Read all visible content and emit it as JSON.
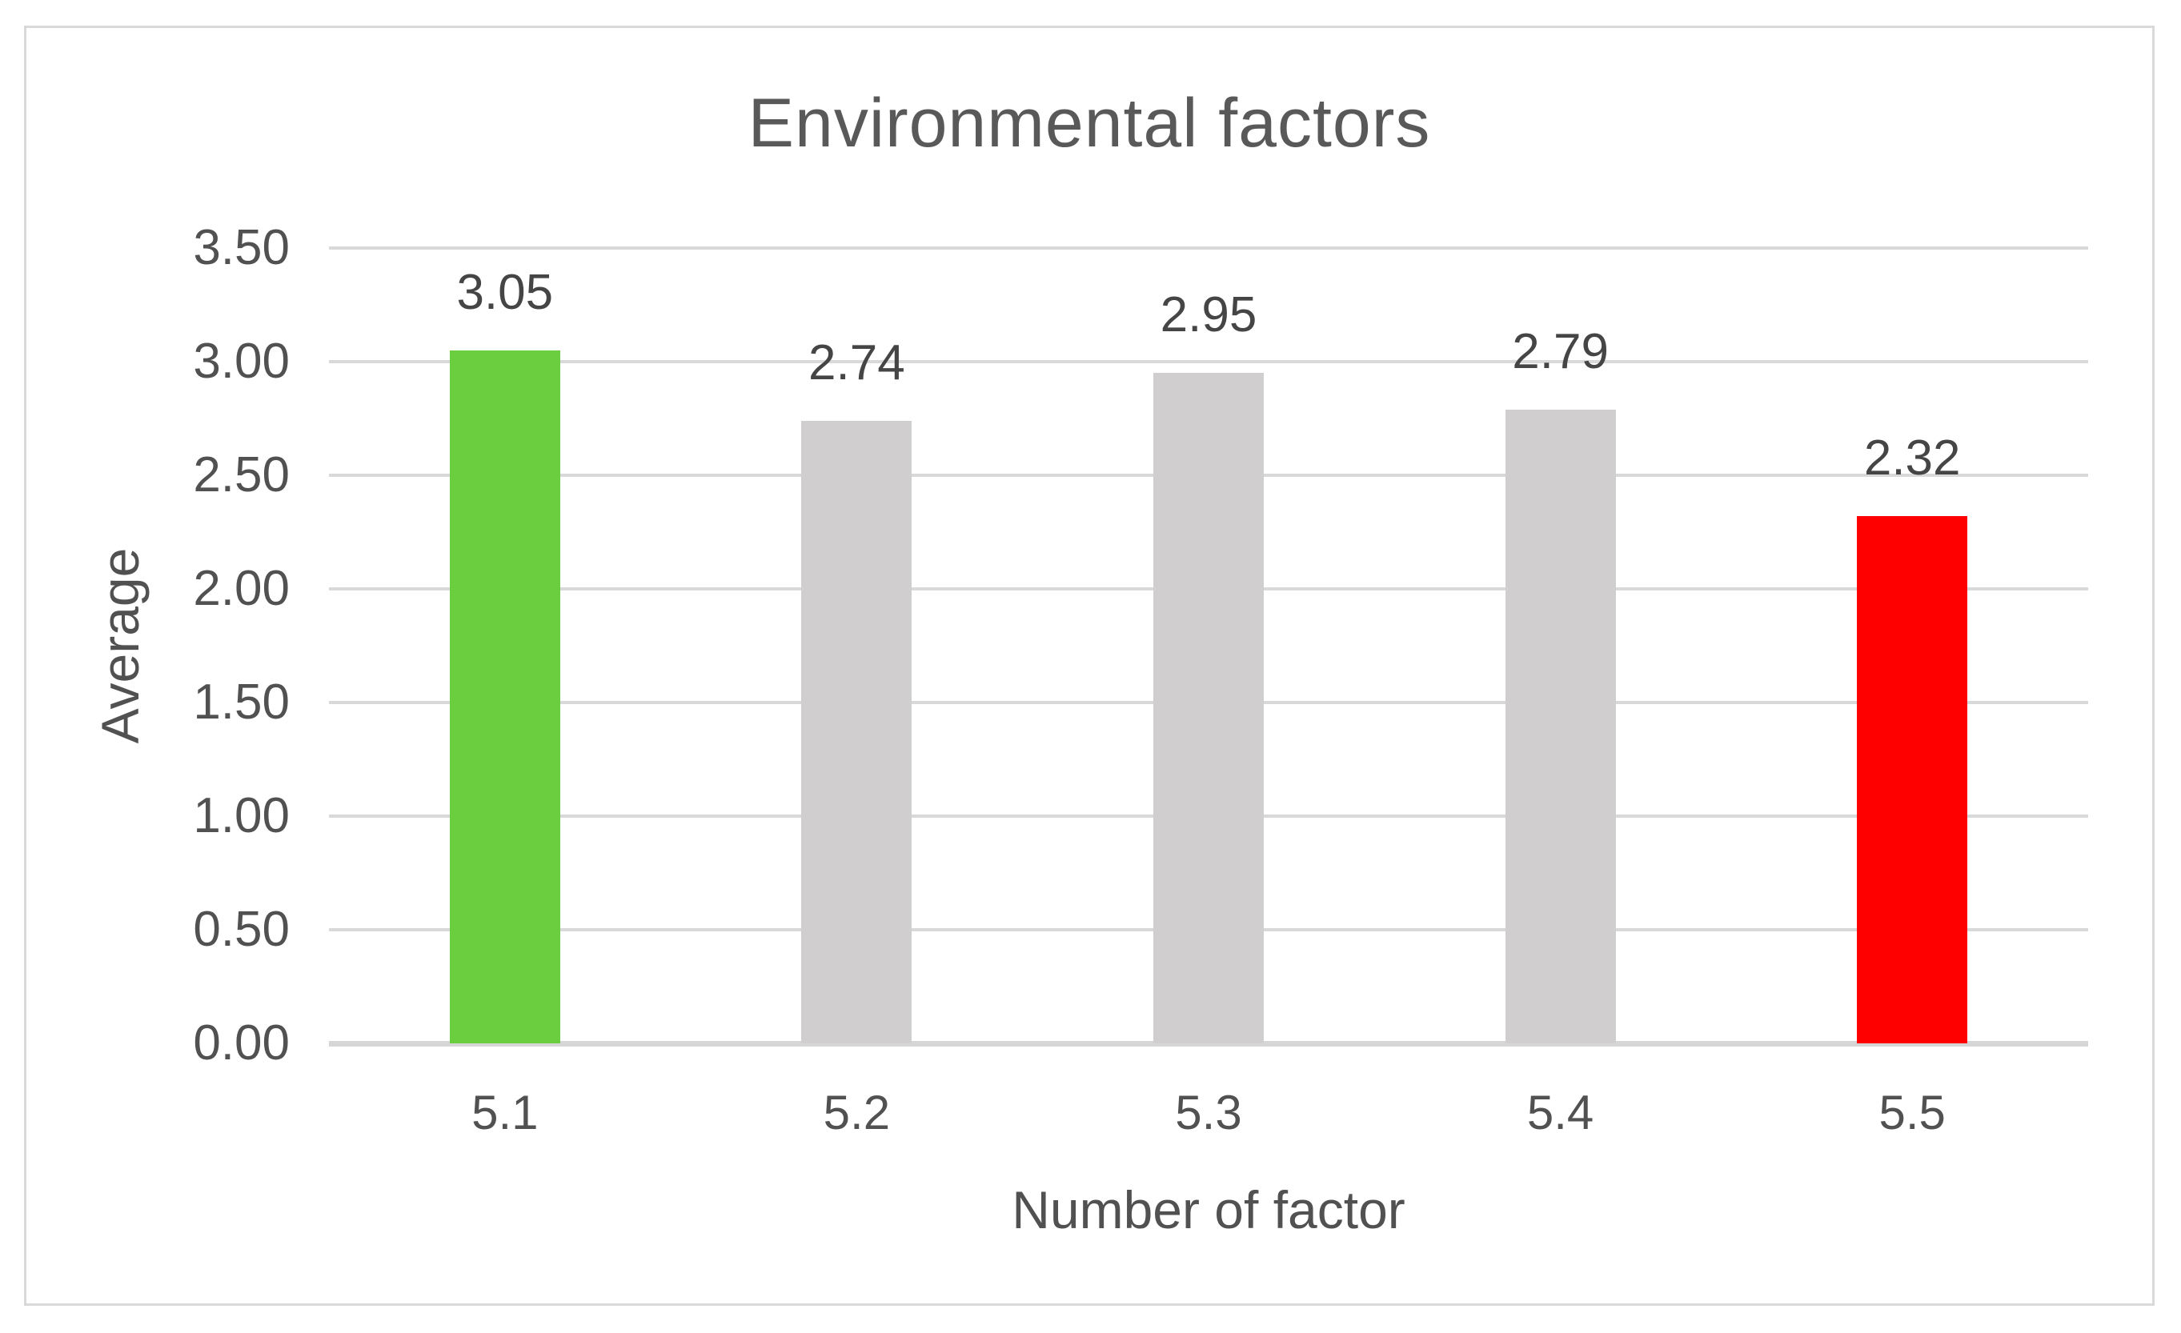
{
  "chart_data": {
    "type": "bar",
    "title": "Environmental factors",
    "xlabel": "Number of factor",
    "ylabel": "Average",
    "categories": [
      "5.1",
      "5.2",
      "5.3",
      "5.4",
      "5.5"
    ],
    "values": [
      3.05,
      2.74,
      2.95,
      2.79,
      2.32
    ],
    "data_labels": [
      "3.05",
      "2.74",
      "2.95",
      "2.79",
      "2.32"
    ],
    "series": [
      {
        "name": "Average",
        "values": [
          3.05,
          2.74,
          2.95,
          2.79,
          2.32
        ]
      }
    ],
    "bar_colors": [
      "#6BCE3F",
      "#D1CECF",
      "#D1CECF",
      "#D1CECF",
      "#FF0000"
    ],
    "ylim": [
      0,
      3.5
    ],
    "ytick_step": 0.5,
    "ytick_values": [
      0,
      0.5,
      1,
      1.5,
      2,
      2.5,
      3,
      3.5
    ],
    "ytick_labels": [
      "0.00",
      "0.50",
      "1.00",
      "1.50",
      "2.00",
      "2.50",
      "3.00",
      "3.50"
    ],
    "grid": true,
    "legend_position": "none",
    "colors": {
      "highlight_positive": "#6BCE3F",
      "neutral": "#D1CECF",
      "highlight_negative": "#FF0000",
      "gridline": "#D9D9D9",
      "axis_line": "#D6D6D6",
      "tick_text": "#515151",
      "data_label_text": "#454545",
      "title_text": "#595959",
      "border": "#D9D9D9",
      "background": "#FFFFFF"
    }
  }
}
